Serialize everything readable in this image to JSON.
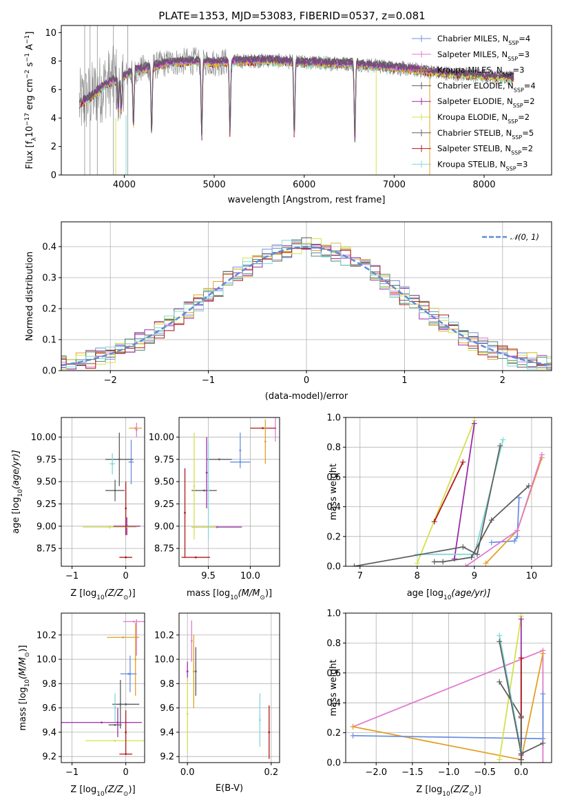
{
  "figure_title": "PLATE=1353, MJD=53083, FIBERID=0537, z=0.081",
  "colors": {
    "chabrier_miles": "#6a8fe0",
    "salpeter_miles": "#e07ad0",
    "kroupa_miles": "#e3a020",
    "chabrier_elodie": "#5a5a5a",
    "salpeter_elodie": "#9a2aa8",
    "kroupa_elodie": "#d4e04a",
    "chabrier_stelib": "#606060",
    "salpeter_stelib": "#b01818",
    "kroupa_stelib": "#7fd8d8",
    "data": "#808080",
    "normal": "#5b8bd6"
  },
  "chart_data": [
    {
      "id": "spectrum",
      "type": "line",
      "xlabel": "wavelength [Angstrom, rest frame]",
      "ylabel_main": "Flux [f",
      "ylabel_sub": "λ",
      "ylabel_rest": "10",
      "ylabel_exp": "−17",
      "ylabel_tail": " erg cm",
      "ylabel_tail_exp": "−2",
      "ylabel_tail2": " s",
      "ylabel_tail2_exp": "−1",
      "ylabel_tail3": " A",
      "ylabel_tail3_exp": "−1",
      "ylabel_end": "]",
      "xlim": [
        3300,
        8750
      ],
      "ylim": [
        0,
        10.5
      ],
      "xticks": [
        4000,
        5000,
        6000,
        7000,
        8000
      ],
      "yticks": [
        0,
        2,
        4,
        6,
        8,
        10
      ],
      "continuum": [
        [
          3500,
          5.0
        ],
        [
          3650,
          5.6
        ],
        [
          3800,
          6.4
        ],
        [
          3950,
          6.8
        ],
        [
          4100,
          7.3
        ],
        [
          4300,
          7.6
        ],
        [
          4500,
          7.9
        ],
        [
          4800,
          8.0
        ],
        [
          5000,
          7.9
        ],
        [
          5300,
          8.0
        ],
        [
          5600,
          8.05
        ],
        [
          6000,
          7.9
        ],
        [
          6300,
          7.85
        ],
        [
          6600,
          7.8
        ],
        [
          6900,
          7.6
        ],
        [
          7200,
          7.4
        ],
        [
          7500,
          7.2
        ],
        [
          7800,
          7.05
        ],
        [
          8100,
          6.9
        ],
        [
          8300,
          6.85
        ]
      ],
      "absorption_lines": [
        [
          3934,
          3.0
        ],
        [
          3969,
          3.2
        ],
        [
          4102,
          5.2
        ],
        [
          4304,
          6.2
        ],
        [
          4861,
          7.0
        ],
        [
          5175,
          6.7
        ],
        [
          5890,
          7.0
        ],
        [
          6563,
          7.2
        ]
      ],
      "legend": [
        {
          "imf": "Chabrier MILES, N",
          "n": "4",
          "color_key": "chabrier_miles"
        },
        {
          "imf": "Salpeter MILES, N",
          "n": "3",
          "color_key": "salpeter_miles"
        },
        {
          "imf": "Kroupa MILES, N",
          "n": "3",
          "color_key": "kroupa_miles"
        },
        {
          "imf": "Chabrier ELODIE, N",
          "n": "4",
          "color_key": "chabrier_elodie"
        },
        {
          "imf": "Salpeter ELODIE, N",
          "n": "2",
          "color_key": "salpeter_elodie"
        },
        {
          "imf": "Kroupa ELODIE, N",
          "n": "2",
          "color_key": "kroupa_elodie"
        },
        {
          "imf": "Chabrier STELIB, N",
          "n": "5",
          "color_key": "chabrier_stelib"
        },
        {
          "imf": "Salpeter STELIB, N",
          "n": "2",
          "color_key": "salpeter_stelib"
        },
        {
          "imf": "Kroupa STELIB, N",
          "n": "3",
          "color_key": "kroupa_stelib"
        }
      ],
      "legend_sub": "SSP",
      "legend_placement": "right"
    },
    {
      "id": "residuals",
      "type": "histogram",
      "xlabel": "(data-model)/error",
      "ylabel": "Normed distribution",
      "xlim": [
        -2.5,
        2.5
      ],
      "ylim": [
        0,
        0.48
      ],
      "xticks": [
        -2,
        -1,
        0,
        1,
        2
      ],
      "yticks": [
        0.0,
        0.1,
        0.2,
        0.3,
        0.4
      ],
      "grid": true,
      "legend_label": "𝒩(0, 1)",
      "legend_placement": "top-right",
      "bin_width": 0.1
    },
    {
      "id": "age_vs_z",
      "type": "errorbar",
      "xlabel": "Z [log",
      "xlabel_sub": "10",
      "xlabel_rest": "(Z/Z",
      "xlabel_sub2": "⊙",
      "xlabel_end": ")]",
      "ylabel": "age  [log",
      "ylabel_sub": "10",
      "ylabel_rest": "(age/yr)]",
      "xlim": [
        -1.2,
        0.35
      ],
      "ylim": [
        8.55,
        10.22
      ],
      "xticks": [
        -1,
        0
      ],
      "yticks": [
        8.75,
        9.0,
        9.25,
        9.5,
        9.75,
        10.0
      ],
      "grid": true,
      "points": [
        {
          "x": 0.18,
          "y": 10.1,
          "xerr": 0.12,
          "yerr": 0.0,
          "c": "kroupa_miles"
        },
        {
          "x": 0.1,
          "y": 9.72,
          "xerr": 0.05,
          "yerr": 0.25,
          "c": "chabrier_miles"
        },
        {
          "x": -0.12,
          "y": 9.75,
          "xerr": 0.26,
          "yerr": 0.3,
          "c": "chabrier_elodie"
        },
        {
          "x": -0.25,
          "y": 9.7,
          "xerr": 0.05,
          "yerr": 0.12,
          "c": "kroupa_stelib"
        },
        {
          "x": -0.2,
          "y": 9.4,
          "xerr": 0.18,
          "yerr": 0.12,
          "c": "chabrier_stelib"
        },
        {
          "x": 0.02,
          "y": 9.0,
          "xerr": 0.25,
          "yerr": 0.1,
          "c": "salpeter_elodie"
        },
        {
          "x": -0.3,
          "y": 8.99,
          "xerr": 0.5,
          "yerr": 0.02,
          "c": "kroupa_elodie"
        },
        {
          "x": 0.0,
          "y": 8.65,
          "xerr": 0.12,
          "yerr": 0.0,
          "c": "salpeter_stelib"
        },
        {
          "x": 0.0,
          "y": 9.2,
          "xerr": 0.0,
          "yerr": 0.3,
          "c": "salpeter_stelib"
        },
        {
          "x": 0.2,
          "y": 10.08,
          "xerr": 0.02,
          "yerr": 0.08,
          "c": "salpeter_miles"
        }
      ]
    },
    {
      "id": "age_vs_mass",
      "type": "errorbar",
      "xlabel": "mass [log",
      "xlabel_sub": "10",
      "xlabel_rest": "(M/M",
      "xlabel_sub2": "⊙",
      "xlabel_end": ")]",
      "xlim": [
        9.15,
        10.35
      ],
      "ylim": [
        8.55,
        10.22
      ],
      "xticks": [
        9.5,
        10.0
      ],
      "yticks": [
        8.75,
        9.0,
        9.25,
        9.5,
        9.75,
        10.0
      ],
      "grid": true,
      "points": [
        {
          "x": 10.3,
          "y": 10.1,
          "xerr": 0.0,
          "yerr": 0.15,
          "c": "salpeter_miles"
        },
        {
          "x": 10.15,
          "y": 10.1,
          "xerr": 0.15,
          "yerr": 0.0,
          "c": "salpeter_stelib"
        },
        {
          "x": 10.18,
          "y": 9.95,
          "xerr": 0.0,
          "yerr": 0.25,
          "c": "kroupa_miles"
        },
        {
          "x": 9.88,
          "y": 9.72,
          "xerr": 0.12,
          "yerr": 0.0,
          "c": "chabrier_miles"
        },
        {
          "x": 9.88,
          "y": 9.85,
          "xerr": 0.0,
          "yerr": 0.2,
          "c": "chabrier_miles"
        },
        {
          "x": 9.63,
          "y": 9.75,
          "xerr": 0.15,
          "yerr": 0.0,
          "c": "chabrier_elodie"
        },
        {
          "x": 9.45,
          "y": 9.4,
          "xerr": 0.15,
          "yerr": 0.0,
          "c": "chabrier_stelib"
        },
        {
          "x": 9.48,
          "y": 9.6,
          "xerr": 0.0,
          "yerr": 0.4,
          "c": "salpeter_elodie"
        },
        {
          "x": 9.33,
          "y": 9.45,
          "xerr": 0.0,
          "yerr": 0.6,
          "c": "kroupa_elodie"
        },
        {
          "x": 9.6,
          "y": 8.99,
          "xerr": 0.3,
          "yerr": 0.0,
          "c": "salpeter_elodie"
        },
        {
          "x": 9.45,
          "y": 8.99,
          "xerr": 0.15,
          "yerr": 0.0,
          "c": "kroupa_elodie"
        },
        {
          "x": 9.22,
          "y": 9.15,
          "xerr": 0.0,
          "yerr": 0.5,
          "c": "salpeter_stelib"
        },
        {
          "x": 9.35,
          "y": 8.65,
          "xerr": 0.17,
          "yerr": 0.0,
          "c": "salpeter_stelib"
        },
        {
          "x": 9.5,
          "y": 9.4,
          "xerr": 0.0,
          "yerr": 0.55,
          "c": "kroupa_stelib"
        }
      ]
    },
    {
      "id": "weight_vs_age",
      "type": "line",
      "xlabel": "age  [log",
      "xlabel_sub": "10",
      "xlabel_rest": "(age/yr)]",
      "ylabel": "mass weight",
      "xlim": [
        6.75,
        10.35
      ],
      "ylim": [
        0,
        1.0
      ],
      "xticks": [
        7,
        8,
        9,
        10
      ],
      "yticks": [
        0.0,
        0.2,
        0.4,
        0.6,
        0.8,
        1.0
      ],
      "grid": true,
      "series": [
        {
          "c": "kroupa_elodie",
          "x": [
            8.0,
            9.0
          ],
          "y": [
            0.02,
            0.98
          ]
        },
        {
          "c": "salpeter_elodie",
          "x": [
            8.65,
            9.0
          ],
          "y": [
            0.05,
            0.96
          ]
        },
        {
          "c": "salpeter_stelib",
          "x": [
            8.3,
            8.8
          ],
          "y": [
            0.3,
            0.7
          ]
        },
        {
          "c": "kroupa_stelib",
          "x": [
            8.0,
            9.0,
            9.5
          ],
          "y": [
            0.08,
            0.08,
            0.85
          ]
        },
        {
          "c": "chabrier_stelib",
          "x": [
            6.9,
            8.8,
            9.05,
            9.45
          ],
          "y": [
            0.0,
            0.13,
            0.08,
            0.81
          ]
        },
        {
          "c": "chabrier_elodie",
          "x": [
            8.3,
            8.45,
            8.95,
            9.3,
            9.95
          ],
          "y": [
            0.03,
            0.03,
            0.06,
            0.31,
            0.54
          ]
        },
        {
          "c": "chabrier_miles",
          "x": [
            9.3,
            9.7,
            9.75,
            9.78
          ],
          "y": [
            0.16,
            0.17,
            0.2,
            0.46
          ]
        },
        {
          "c": "kroupa_miles",
          "x": [
            9.2,
            9.75,
            10.18
          ],
          "y": [
            0.02,
            0.24,
            0.73
          ]
        },
        {
          "c": "salpeter_miles",
          "x": [
            8.85,
            9.75,
            10.18
          ],
          "y": [
            0.0,
            0.24,
            0.75
          ]
        }
      ]
    },
    {
      "id": "mass_vs_z",
      "type": "errorbar",
      "xlabel": "Z [log",
      "xlabel_sub": "10",
      "xlabel_rest": "(Z/Z",
      "xlabel_sub2": "⊙",
      "xlabel_end": ")]",
      "ylabel": "mass [log",
      "ylabel_sub": "10",
      "ylabel_rest": "(M/M",
      "ylabel_sub2": "⊙",
      "ylabel_end": ")]",
      "xlim": [
        -1.2,
        0.35
      ],
      "ylim": [
        9.15,
        10.38
      ],
      "xticks": [
        -1,
        0
      ],
      "yticks": [
        9.2,
        9.4,
        9.6,
        9.8,
        10.0,
        10.2
      ],
      "grid": true,
      "points": [
        {
          "x": 0.15,
          "y": 10.31,
          "xerr": 0.2,
          "yerr": 0.0,
          "c": "salpeter_miles"
        },
        {
          "x": 0.2,
          "y": 10.18,
          "xerr": 0.0,
          "yerr": 0.15,
          "c": "salpeter_miles"
        },
        {
          "x": -0.05,
          "y": 10.18,
          "xerr": 0.3,
          "yerr": 0.0,
          "c": "kroupa_miles"
        },
        {
          "x": 0.18,
          "y": 10.0,
          "xerr": 0.0,
          "yerr": 0.3,
          "c": "kroupa_miles"
        },
        {
          "x": 0.05,
          "y": 9.88,
          "xerr": 0.15,
          "yerr": 0.0,
          "c": "chabrier_miles"
        },
        {
          "x": 0.08,
          "y": 9.88,
          "xerr": 0.0,
          "yerr": 0.15,
          "c": "chabrier_miles"
        },
        {
          "x": 0.0,
          "y": 9.63,
          "xerr": 0.25,
          "yerr": 0.0,
          "c": "chabrier_elodie"
        },
        {
          "x": -0.1,
          "y": 9.63,
          "xerr": 0.0,
          "yerr": 0.2,
          "c": "chabrier_elodie"
        },
        {
          "x": -0.2,
          "y": 9.6,
          "xerr": 0.0,
          "yerr": 0.12,
          "c": "kroupa_stelib"
        },
        {
          "x": -0.2,
          "y": 9.46,
          "xerr": 0.12,
          "yerr": 0.0,
          "c": "chabrier_stelib"
        },
        {
          "x": -0.45,
          "y": 9.48,
          "xerr": 0.75,
          "yerr": 0.0,
          "c": "salpeter_elodie"
        },
        {
          "x": -0.15,
          "y": 9.48,
          "xerr": 0.0,
          "yerr": 0.12,
          "c": "salpeter_elodie"
        },
        {
          "x": -0.2,
          "y": 9.33,
          "xerr": 0.55,
          "yerr": 0.0,
          "c": "kroupa_elodie"
        },
        {
          "x": 0.0,
          "y": 9.22,
          "xerr": 0.12,
          "yerr": 0.0,
          "c": "salpeter_stelib"
        },
        {
          "x": 0.0,
          "y": 9.4,
          "xerr": 0.0,
          "yerr": 0.18,
          "c": "salpeter_stelib"
        }
      ]
    },
    {
      "id": "mass_vs_ebv",
      "type": "errorbar",
      "xlabel": "E(B-V)",
      "xlim": [
        -0.02,
        0.22
      ],
      "ylim": [
        9.15,
        10.38
      ],
      "xticks": [
        0.0,
        0.2
      ],
      "yticks": [
        9.2,
        9.4,
        9.6,
        9.8,
        10.0,
        10.2
      ],
      "grid": true,
      "points": [
        {
          "x": 0.01,
          "y": 10.15,
          "xerr": 0.0,
          "yerr": 0.17,
          "c": "salpeter_miles"
        },
        {
          "x": 0.015,
          "y": 9.9,
          "xerr": 0.0,
          "yerr": 0.3,
          "c": "kroupa_miles"
        },
        {
          "x": 0.02,
          "y": 9.9,
          "xerr": 0.0,
          "yerr": 0.2,
          "c": "chabrier_elodie"
        },
        {
          "x": 0.0,
          "y": 9.9,
          "xerr": 0.0,
          "yerr": 0.08,
          "c": "salpeter_elodie"
        },
        {
          "x": 0.0,
          "y": 9.55,
          "xerr": 0.0,
          "yerr": 0.3,
          "c": "kroupa_elodie"
        },
        {
          "x": 0.173,
          "y": 9.5,
          "xerr": 0.0,
          "yerr": 0.22,
          "c": "kroupa_stelib"
        },
        {
          "x": 0.195,
          "y": 9.4,
          "xerr": 0.0,
          "yerr": 0.22,
          "c": "salpeter_stelib"
        }
      ]
    },
    {
      "id": "weight_vs_z",
      "type": "line",
      "xlabel": "Z [log",
      "xlabel_sub": "10",
      "xlabel_rest": "(Z/Z",
      "xlabel_sub2": "⊙",
      "xlabel_end": ")]",
      "ylabel": "mass weight",
      "xlim": [
        -2.42,
        0.42
      ],
      "ylim": [
        0,
        1.0
      ],
      "xticks": [
        -2.0,
        -1.5,
        -1.0,
        -0.5,
        0.0
      ],
      "yticks": [
        0.0,
        0.2,
        0.4,
        0.6,
        0.8,
        1.0
      ],
      "grid": true,
      "series": [
        {
          "c": "salpeter_miles",
          "x": [
            -2.32,
            0.3,
            0.3
          ],
          "y": [
            0.24,
            0.75,
            0.0
          ]
        },
        {
          "c": "kroupa_miles",
          "x": [
            -2.32,
            0.0,
            0.3
          ],
          "y": [
            0.24,
            0.02,
            0.73
          ]
        },
        {
          "c": "chabrier_miles",
          "x": [
            -2.32,
            0.3,
            0.3
          ],
          "y": [
            0.18,
            0.16,
            0.46
          ]
        },
        {
          "c": "kroupa_elodie",
          "x": [
            -0.3,
            0.0
          ],
          "y": [
            0.02,
            0.98
          ]
        },
        {
          "c": "salpeter_elodie",
          "x": [
            0.0,
            0.0
          ],
          "y": [
            0.05,
            0.96
          ]
        },
        {
          "c": "salpeter_stelib",
          "x": [
            0.0,
            0.0,
            0.0
          ],
          "y": [
            0.02,
            0.3,
            0.7
          ]
        },
        {
          "c": "chabrier_elodie",
          "x": [
            -0.3,
            0.0,
            0.0
          ],
          "y": [
            0.54,
            0.31,
            0.02
          ]
        },
        {
          "c": "kroupa_stelib",
          "x": [
            -0.3,
            0.0
          ],
          "y": [
            0.85,
            0.08
          ]
        },
        {
          "c": "chabrier_stelib",
          "x": [
            -0.3,
            0.0,
            0.3
          ],
          "y": [
            0.81,
            0.06,
            0.13
          ]
        }
      ]
    }
  ]
}
